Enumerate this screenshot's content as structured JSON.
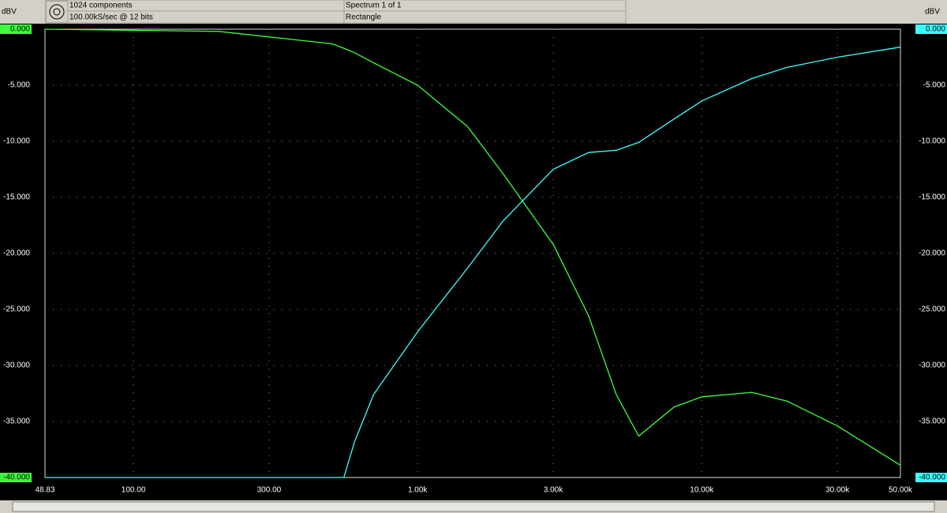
{
  "header": {
    "components": "1024 components",
    "sampling": "100.00kS/sec @ 12 bits",
    "spectrum": "Spectrum 1 of 1",
    "window": "Rectangle"
  },
  "chart_data": {
    "type": "line",
    "y_label": "dBV",
    "x": [
      48.83,
      200,
      500,
      550,
      600,
      700,
      1000,
      1500,
      2000,
      3000,
      4000,
      5000,
      6000,
      8000,
      10000,
      15000,
      20000,
      30000,
      50000
    ],
    "series": [
      {
        "color": "#3cff3c",
        "values": [
          0,
          -0.2,
          -1.3,
          -1.7,
          -2.1,
          -3.0,
          -5.0,
          -8.7,
          -12.9,
          -19.2,
          -25.6,
          -32.6,
          -36.3,
          -33.7,
          -32.8,
          -32.4,
          -33.2,
          -35.4,
          -38.9
        ]
      },
      {
        "color": "#3cffff",
        "values": [
          -40,
          -40,
          -40,
          -40,
          -36.8,
          -32.6,
          -27.0,
          -21.3,
          -17.1,
          -12.5,
          -11.0,
          -10.8,
          -10.1,
          -8.0,
          -6.4,
          -4.4,
          -3.4,
          -2.5,
          -1.6
        ]
      }
    ],
    "xscale": "log",
    "xlim": [
      48.83,
      50000
    ],
    "xticks": [
      {
        "value": 48.83,
        "label": "48.83"
      },
      {
        "value": 100,
        "label": "100.00"
      },
      {
        "value": 300,
        "label": "300.00"
      },
      {
        "value": 1000,
        "label": "1.00k"
      },
      {
        "value": 3000,
        "label": "3.00k"
      },
      {
        "value": 10000,
        "label": "10.00k"
      },
      {
        "value": 30000,
        "label": "30.00k"
      },
      {
        "value": 50000,
        "label": "50.00k"
      }
    ],
    "ylim": [
      -40,
      0
    ],
    "yticks": [
      {
        "value": 0,
        "label": "0.000"
      },
      {
        "value": -5,
        "label": "-5.000"
      },
      {
        "value": -10,
        "label": "-10.000"
      },
      {
        "value": -15,
        "label": "-15.000"
      },
      {
        "value": -20,
        "label": "-20.000"
      },
      {
        "value": -25,
        "label": "-25.000"
      },
      {
        "value": -30,
        "label": "-30.000"
      },
      {
        "value": -35,
        "label": "-35.000"
      },
      {
        "value": -40,
        "label": "-40.000"
      }
    ],
    "grid": true
  }
}
